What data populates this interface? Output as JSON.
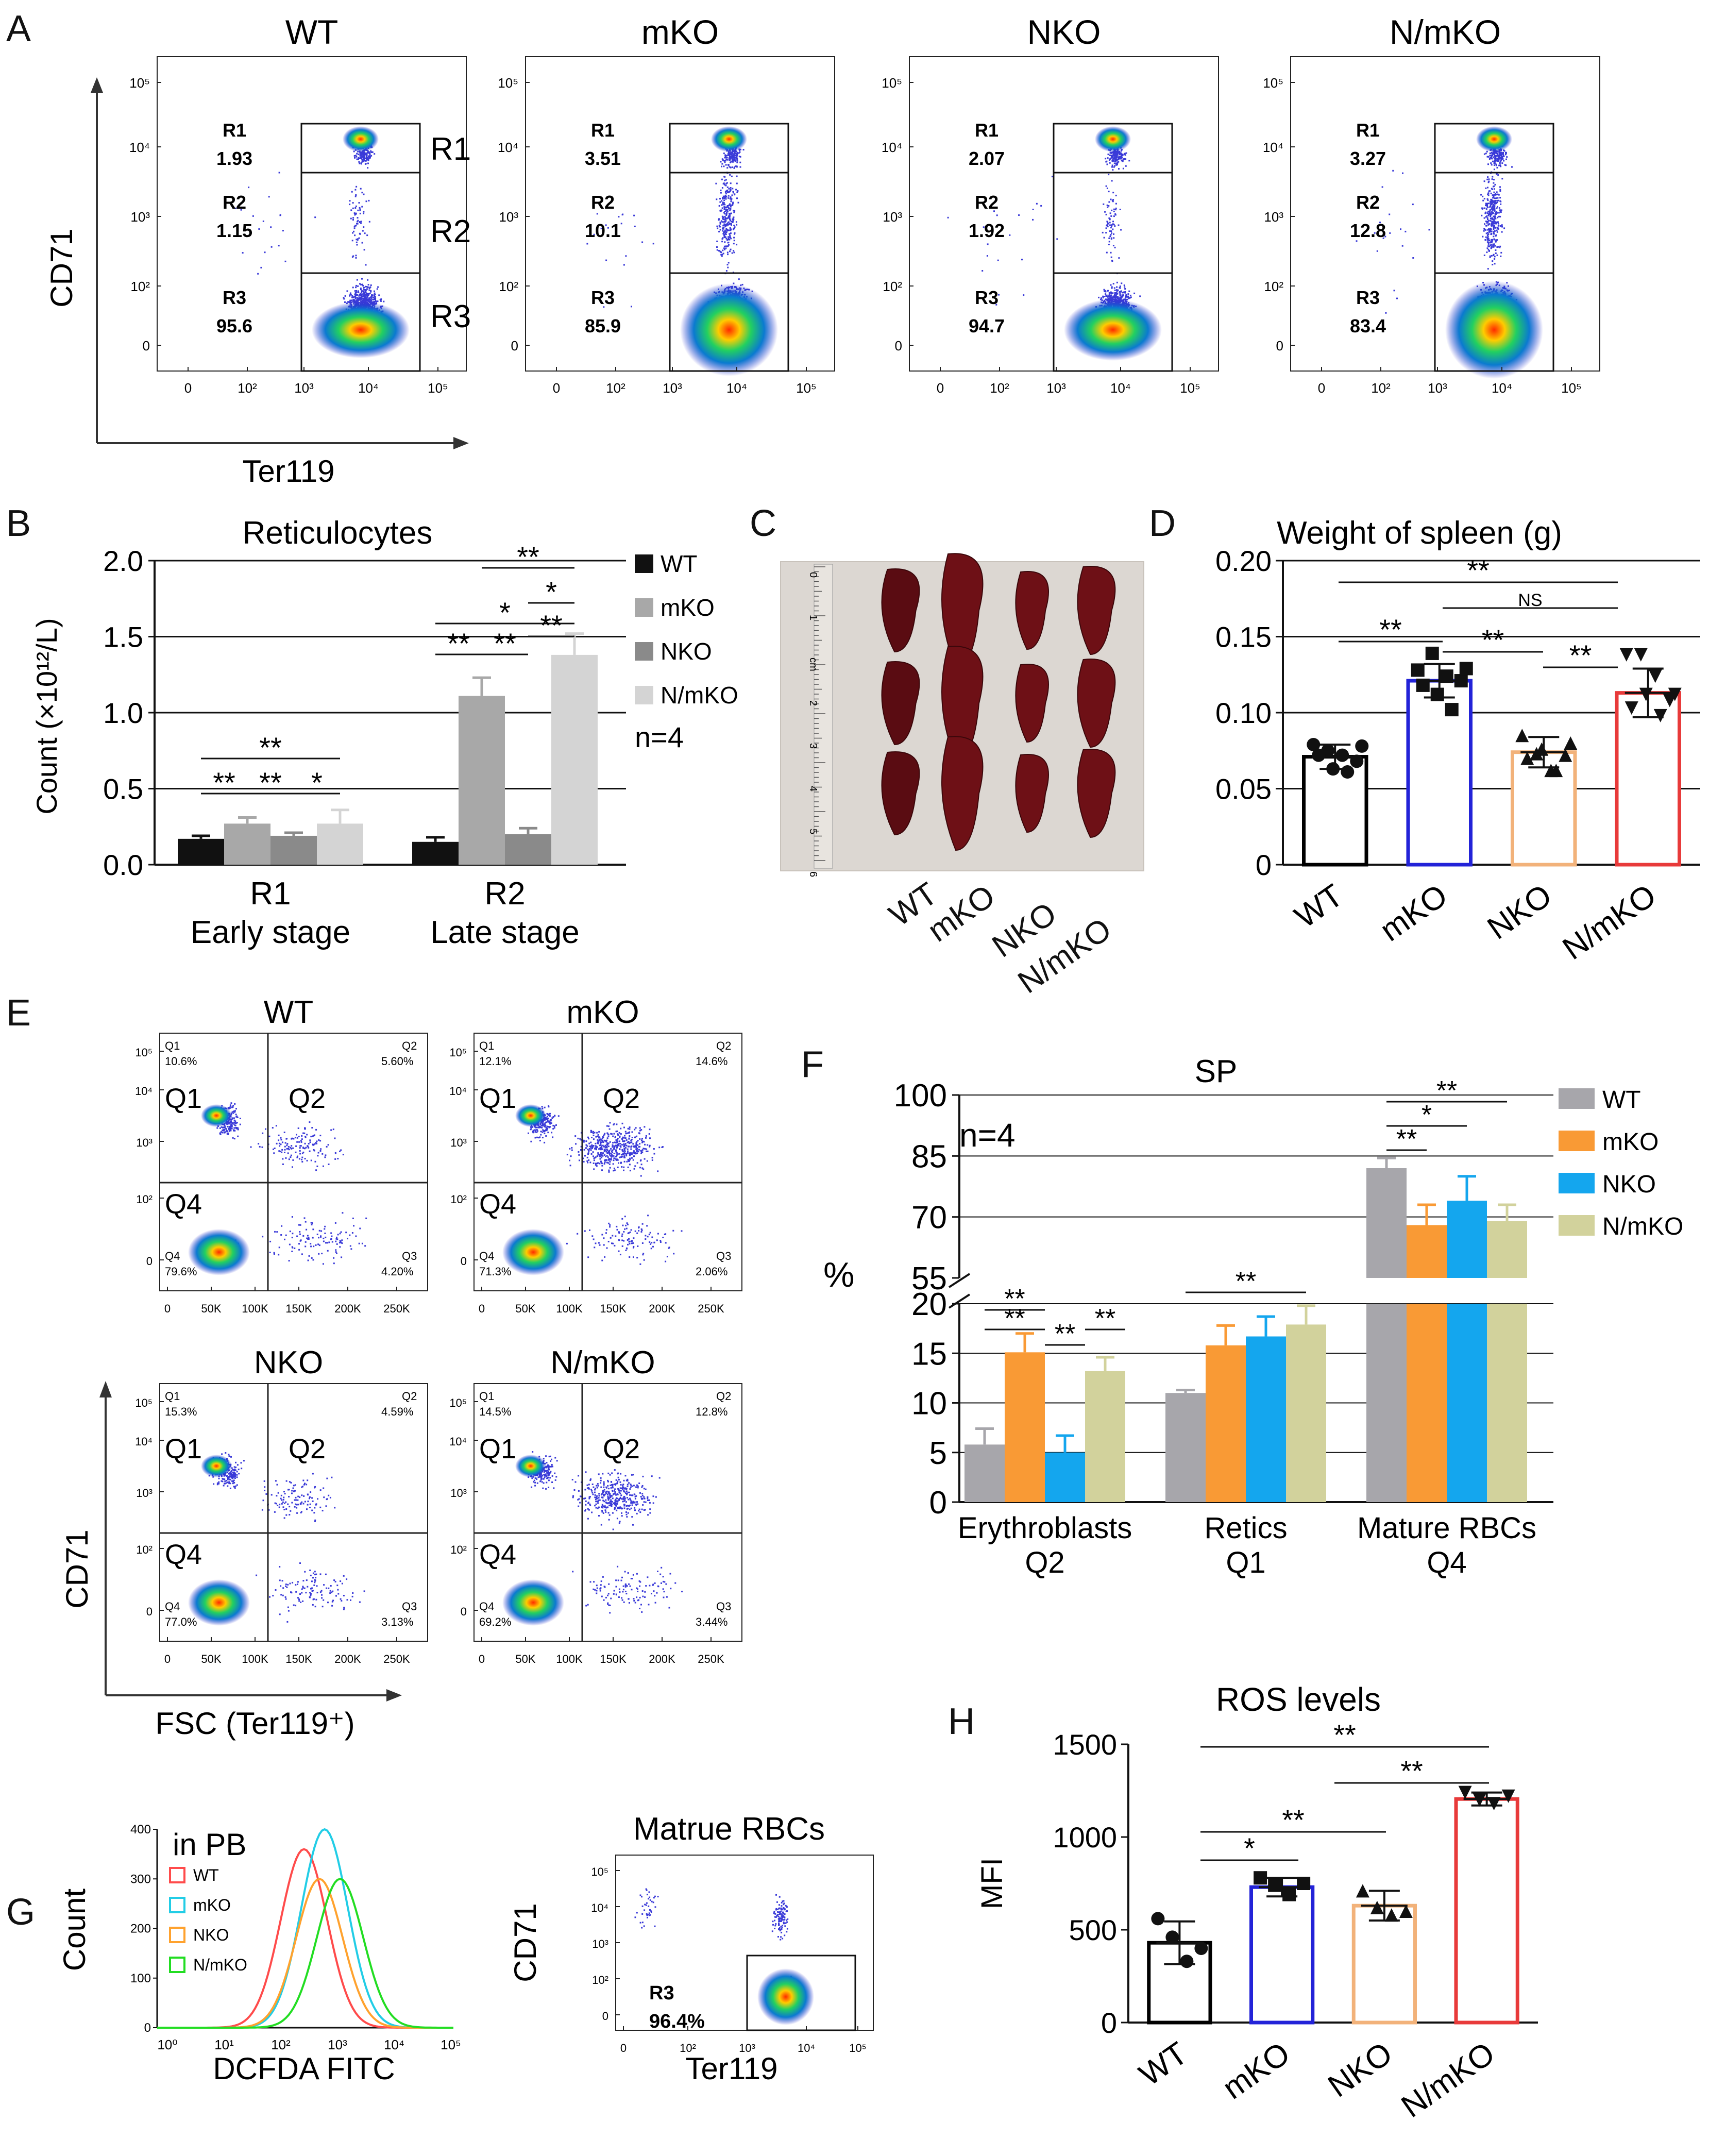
{
  "panel_labels": [
    "A",
    "B",
    "C",
    "D",
    "E",
    "F",
    "G",
    "H"
  ],
  "colors": {
    "wt": "#000000",
    "mko": "#2323d8",
    "nko": "#f2b27a",
    "nmko": "#e83a3a",
    "f_wt": "#a7a6ab",
    "f_mko": "#f99a35",
    "f_nko": "#14a6ee",
    "f_nmko": "#d2d29c",
    "b_wt": "#111111",
    "b_mko": "#a8a8a8",
    "b_nko": "#8a8a8a",
    "b_nmko": "#d4d4d4",
    "h_wt": "#ff4b4b",
    "h_mko": "#22cde6",
    "h_nko": "#ffa22e",
    "h_nmko": "#22dd22"
  },
  "panelA": {
    "xlabel": "Ter119",
    "ylabel": "CD71",
    "gate_labels": [
      "R1",
      "R2",
      "R3"
    ],
    "y_ticks": [
      "10⁵",
      "10⁴",
      "10³",
      "10²",
      "0"
    ],
    "x_ticks": [
      "0",
      "10²",
      "10³",
      "10⁴",
      "10⁵"
    ],
    "plots": [
      {
        "title": "WT",
        "r1_label": "R1",
        "r1": "1.93",
        "r2_label": "R2",
        "r2": "1.15",
        "r3_label": "R3",
        "r3": "95.6"
      },
      {
        "title": "mKO",
        "r1_label": "R1",
        "r1": "3.51",
        "r2_label": "R2",
        "r2": "10.1",
        "r3_label": "R3",
        "r3": "85.9"
      },
      {
        "title": "NKO",
        "r1_label": "R1",
        "r1": "2.07",
        "r2_label": "R2",
        "r2": "1.92",
        "r3_label": "R3",
        "r3": "94.7"
      },
      {
        "title": "N/mKO",
        "r1_label": "R1",
        "r1": "3.27",
        "r2_label": "R2",
        "r2": "12.8",
        "r3_label": "R3",
        "r3": "83.4"
      }
    ]
  },
  "panelC": {
    "ruler_ticks": [
      "0",
      "1",
      "cm",
      "2",
      "3",
      "4",
      "5",
      "6"
    ],
    "labels": [
      "WT",
      "mKO",
      "NKO",
      "N/mKO"
    ]
  },
  "panelE": {
    "xlabel": "FSC (Ter119⁺)",
    "ylabel": "CD71",
    "y_ticks": [
      "10⁵",
      "10⁴",
      "10³",
      "10²",
      "0"
    ],
    "x_ticks": [
      "0",
      "50K",
      "100K",
      "150K",
      "200K",
      "250K"
    ],
    "quadrant_labels": [
      "Q1",
      "Q2",
      "Q4"
    ],
    "plots": [
      {
        "title": "WT",
        "q1": "Q1",
        "q1v": "10.6%",
        "q2": "Q2",
        "q2v": "5.60%",
        "q3": "Q3",
        "q3v": "4.20%",
        "q4": "Q4",
        "q4v": "79.6%"
      },
      {
        "title": "mKO",
        "q1": "Q1",
        "q1v": "12.1%",
        "q2": "Q2",
        "q2v": "14.6%",
        "q3": "Q3",
        "q3v": "2.06%",
        "q4": "Q4",
        "q4v": "71.3%"
      },
      {
        "title": "NKO",
        "q1": "Q1",
        "q1v": "15.3%",
        "q2": "Q2",
        "q2v": "4.59%",
        "q3": "Q3",
        "q3v": "3.13%",
        "q4": "Q4",
        "q4v": "77.0%"
      },
      {
        "title": "N/mKO",
        "q1": "Q1",
        "q1v": "14.5%",
        "q2": "Q2",
        "q2v": "12.8%",
        "q3": "Q3",
        "q3v": "3.44%",
        "q4": "Q4",
        "q4v": "69.2%"
      }
    ]
  },
  "panelG": {
    "histogram": {
      "title": "in PB",
      "xlabel": "DCFDA FITC",
      "ylabel": "Count",
      "y_ticks": [
        "0",
        "100",
        "200",
        "300",
        "400"
      ],
      "x_ticks": [
        "10⁰",
        "10¹",
        "10²",
        "10³",
        "10⁴",
        "10⁵"
      ],
      "legend": [
        "WT",
        "mKO",
        "NKO",
        "N/mKO"
      ]
    },
    "dotplot": {
      "title": "Matrue RBCs",
      "xlabel": "Ter119",
      "ylabel": "CD71",
      "gate": "R3",
      "gate_value": "96.4%",
      "y_ticks": [
        "10⁵",
        "10⁴",
        "10³",
        "10²",
        "0"
      ],
      "x_ticks": [
        "0",
        "10²",
        "10³",
        "10⁴",
        "10⁵"
      ]
    }
  },
  "chart_data": [
    {
      "id": "B",
      "type": "bar",
      "title": "Reticulocytes",
      "ylabel": "Count (×10¹²/L)",
      "ylim": [
        0,
        2.0
      ],
      "y_ticks": [
        "0.0",
        "0.5",
        "1.0",
        "1.5",
        "2.0"
      ],
      "categories": [
        "R1",
        "R2"
      ],
      "category_sublabels": [
        "Early stage",
        "Late stage"
      ],
      "series": [
        {
          "name": "WT",
          "values": [
            0.17,
            0.15
          ],
          "errors": [
            0.02,
            0.03
          ]
        },
        {
          "name": "mKO",
          "values": [
            0.27,
            1.11
          ],
          "errors": [
            0.04,
            0.12
          ]
        },
        {
          "name": "NKO",
          "values": [
            0.19,
            0.2
          ],
          "errors": [
            0.02,
            0.04
          ]
        },
        {
          "name": "N/mKO",
          "values": [
            0.27,
            1.38
          ],
          "errors": [
            0.09,
            0.14
          ]
        }
      ],
      "annotation": "n=4",
      "significance": [
        "**",
        "**",
        "**",
        "*",
        "**",
        "*",
        "*",
        "**",
        "**",
        "**"
      ]
    },
    {
      "id": "D",
      "type": "bar",
      "title": "Weight of spleen (g)",
      "ylim": [
        0,
        0.2
      ],
      "y_ticks": [
        "0",
        "0.05",
        "0.10",
        "0.15",
        "0.20"
      ],
      "categories": [
        "WT",
        "mKO",
        "NKO",
        "N/mKO"
      ],
      "values": [
        0.071,
        0.121,
        0.074,
        0.113
      ],
      "errors": [
        0.008,
        0.011,
        0.01,
        0.016
      ],
      "points": [
        [
          0.079,
          0.075,
          0.072,
          0.068,
          0.072,
          0.063,
          0.061,
          0.078
        ],
        [
          0.128,
          0.139,
          0.124,
          0.121,
          0.118,
          0.112,
          0.102,
          0.129
        ],
        [
          0.085,
          0.073,
          0.062,
          0.072,
          0.07,
          0.076,
          0.062,
          0.08
        ],
        [
          0.138,
          0.138,
          0.124,
          0.108,
          0.103,
          0.112,
          0.098,
          0.112
        ]
      ],
      "significance": [
        "**",
        "NS",
        "**",
        "**",
        "**"
      ]
    },
    {
      "id": "F",
      "type": "bar",
      "title": "SP",
      "ylabel": "%",
      "annotation": "n=4",
      "lower_ticks": [
        "0",
        "5",
        "10",
        "15",
        "20"
      ],
      "upper_ticks": [
        "55",
        "70",
        "85",
        "100"
      ],
      "categories": [
        "Erythroblasts",
        "Retics",
        "Mature RBCs"
      ],
      "category_sublabels": [
        "Q2",
        "Q1",
        "Q4"
      ],
      "series": [
        {
          "name": "WT",
          "values": [
            5.8,
            11.0,
            82.0
          ],
          "errors": [
            1.6,
            0.3,
            2.5
          ]
        },
        {
          "name": "mKO",
          "values": [
            15.1,
            15.8,
            68.0
          ],
          "errors": [
            1.9,
            2.0,
            5.0
          ]
        },
        {
          "name": "NKO",
          "values": [
            5.0,
            16.7,
            74.0
          ],
          "errors": [
            1.7,
            2.0,
            6.0
          ]
        },
        {
          "name": "N/mKO",
          "values": [
            13.2,
            17.9,
            69.0
          ],
          "errors": [
            1.4,
            1.9,
            4.0
          ]
        }
      ],
      "significance": [
        "**",
        "**",
        "**",
        "**",
        "**",
        "**",
        "*",
        "**"
      ]
    },
    {
      "id": "H",
      "type": "bar",
      "title": "ROS levels",
      "ylabel": "MFI",
      "ylim": [
        0,
        1500
      ],
      "y_ticks": [
        "0",
        "500",
        "1000",
        "1500"
      ],
      "categories": [
        "WT",
        "mKO",
        "NKO",
        "N/mKO"
      ],
      "values": [
        430,
        730,
        630,
        1205
      ],
      "errors": [
        115,
        50,
        80,
        35
      ],
      "points": [
        [
          560,
          460,
          330,
          400
        ],
        [
          780,
          740,
          690,
          750
        ],
        [
          710,
          620,
          580,
          600
        ],
        [
          1240,
          1200,
          1180,
          1220
        ]
      ],
      "significance": [
        "**",
        "**",
        "**",
        "*"
      ]
    }
  ]
}
